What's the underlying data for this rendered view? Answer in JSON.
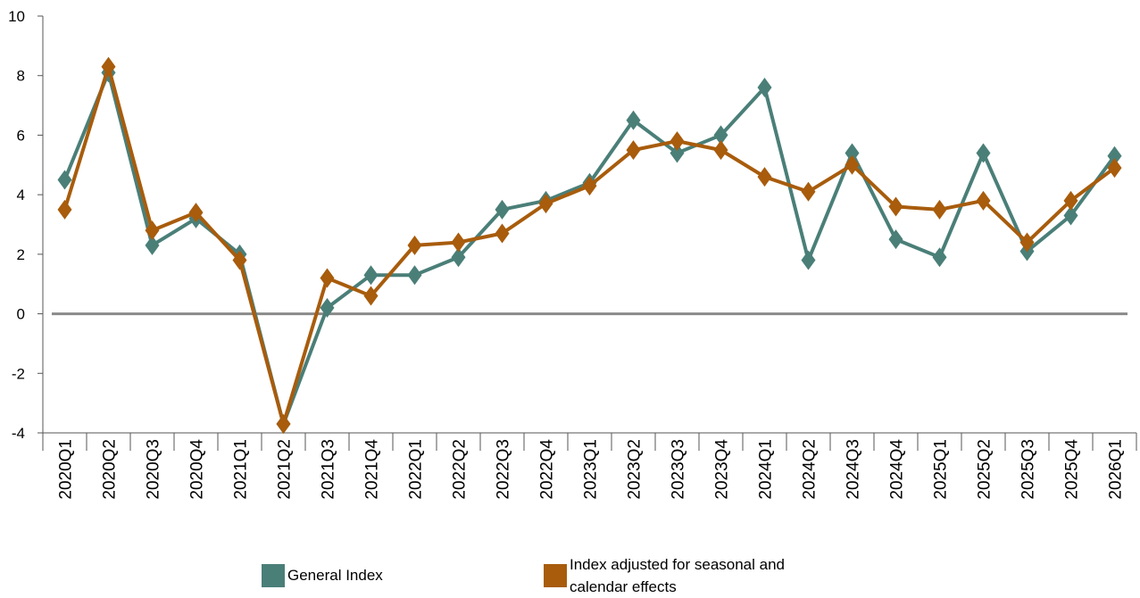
{
  "chart_data": {
    "type": "line",
    "categories": [
      "2020Q1",
      "2020Q2",
      "2020Q3",
      "2020Q4",
      "2021Q1",
      "2021Q2",
      "2021Q3",
      "2021Q4",
      "2022Q1",
      "2022Q2",
      "2022Q3",
      "2022Q4",
      "2023Q1",
      "2023Q2",
      "2023Q3",
      "2023Q4",
      "2024Q1",
      "2024Q2",
      "2024Q3",
      "2024Q4",
      "2025Q1",
      "2025Q2",
      "2025Q3",
      "2025Q4",
      "2026Q1"
    ],
    "series": [
      {
        "name": "General Index",
        "color": "#4a7f78",
        "values": [
          4.5,
          8.1,
          2.3,
          3.2,
          2.0,
          -3.7,
          0.2,
          1.3,
          1.3,
          1.9,
          3.5,
          3.8,
          4.4,
          6.5,
          5.4,
          6.0,
          7.6,
          1.8,
          5.4,
          2.5,
          1.9,
          5.4,
          2.1,
          3.3,
          5.3
        ]
      },
      {
        "name": "Index adjusted for seasonal and calendar effects",
        "color": "#a85c0c",
        "values": [
          3.5,
          8.3,
          2.8,
          3.4,
          1.8,
          -3.7,
          1.2,
          0.6,
          2.3,
          2.4,
          2.7,
          3.7,
          4.3,
          5.5,
          5.8,
          5.5,
          4.6,
          4.1,
          5.0,
          3.6,
          3.5,
          3.8,
          2.4,
          3.8,
          4.9
        ]
      }
    ],
    "ylim": [
      -4,
      10
    ],
    "yticks": [
      -4,
      -2,
      0,
      2,
      4,
      6,
      8,
      10
    ],
    "grid": false,
    "legend_position": "bottom",
    "title": "",
    "xlabel": "",
    "ylabel": ""
  }
}
